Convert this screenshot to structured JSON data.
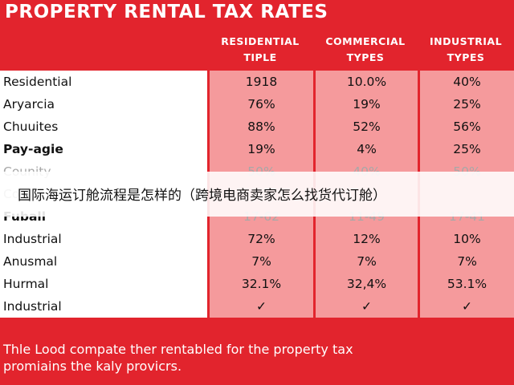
{
  "title": "PROPERTY RENTAL TAX RATES",
  "columns": [
    {
      "line1": "RESIDENTIAL",
      "line2": "TIPLE"
    },
    {
      "line1": "COMMERCIAL",
      "line2": "TYPES"
    },
    {
      "line1": "INDUSTRIAL",
      "line2": "TYPES"
    }
  ],
  "rows": [
    {
      "label": "Residential",
      "v1": "1918",
      "v2": "10.0%",
      "v3": "40%"
    },
    {
      "label": "Aryarcia",
      "v1": "76%",
      "v2": "19%",
      "v3": "25%"
    },
    {
      "label": "Chuuites",
      "v1": "88%",
      "v2": "52%",
      "v3": "56%"
    },
    {
      "label": "Pay-agie",
      "v1": "19%",
      "v2": "4%",
      "v3": "25%"
    },
    {
      "label": "Counity",
      "v1": "50%",
      "v2": "40%",
      "v3": "50%"
    },
    {
      "label": "Co",
      "v1": "",
      "v2": "",
      "v3": ""
    },
    {
      "label": "Fuball",
      "v1": "17-62",
      "v2": "11-49",
      "v3": "17-41"
    },
    {
      "label": "Industrial",
      "v1": "72%",
      "v2": "12%",
      "v3": "10%"
    },
    {
      "label": "Anusmal",
      "v1": "7%",
      "v2": "7%",
      "v3": "7%"
    },
    {
      "label": "Hurmal",
      "v1": "32.1%",
      "v2": "32,4%",
      "v3": "53.1%"
    },
    {
      "label": "Industrial",
      "v1": "✓",
      "v2": "✓",
      "v3": "✓"
    }
  ],
  "overlay_text": "国际海运订舱流程是怎样的（跨境电商卖家怎么找货代订舱）",
  "footer": {
    "line1": "Thle Lood compate ther rentabled for the property tax",
    "line2": "promiains the kaly provicrs."
  }
}
